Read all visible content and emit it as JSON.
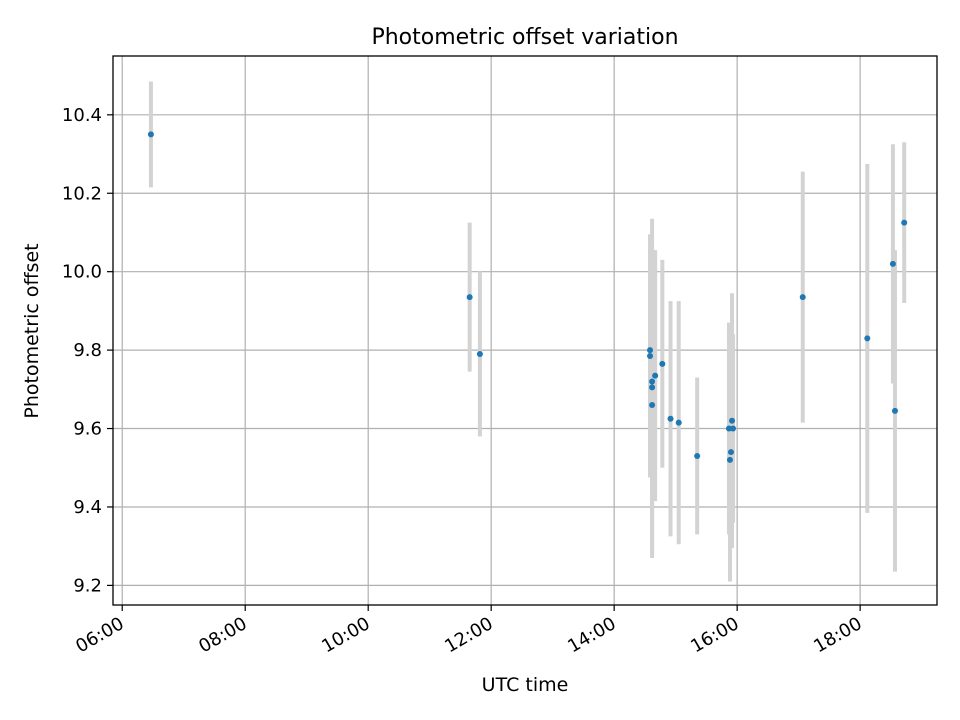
{
  "chart_data": {
    "type": "scatter",
    "title": "Photometric offset variation",
    "xlabel": "UTC time",
    "ylabel": "Photometric offset",
    "x_ticks": [
      "06:00",
      "08:00",
      "10:00",
      "12:00",
      "14:00",
      "16:00",
      "18:00"
    ],
    "y_ticks": [
      "9.2",
      "9.4",
      "9.6",
      "9.8",
      "10.0",
      "10.2",
      "10.4"
    ],
    "xlim": [
      "05:51",
      "19:15"
    ],
    "ylim": [
      9.15,
      10.55
    ],
    "grid": true,
    "legend": "none",
    "colors": {
      "marker": "#1f77b4",
      "errorbar": "#d3d3d3",
      "grid": "#b0b0b0"
    },
    "series": [
      {
        "points": [
          {
            "x": "06:28",
            "y": 10.35,
            "err": 0.135
          },
          {
            "x": "11:39",
            "y": 9.935,
            "err": 0.19
          },
          {
            "x": "11:49",
            "y": 9.79,
            "err": 0.21
          },
          {
            "x": "14:35",
            "y": 9.8,
            "err": 0.19
          },
          {
            "x": "14:35",
            "y": 9.785,
            "err": 0.31
          },
          {
            "x": "14:37",
            "y": 9.72,
            "err": 0.25
          },
          {
            "x": "14:37",
            "y": 9.705,
            "err": 0.43
          },
          {
            "x": "14:37",
            "y": 9.66,
            "err": 0.39
          },
          {
            "x": "14:40",
            "y": 9.735,
            "err": 0.32
          },
          {
            "x": "14:47",
            "y": 9.765,
            "err": 0.265
          },
          {
            "x": "14:55",
            "y": 9.625,
            "err": 0.3
          },
          {
            "x": "15:03",
            "y": 9.615,
            "err": 0.31
          },
          {
            "x": "15:21",
            "y": 9.53,
            "err": 0.2
          },
          {
            "x": "15:52",
            "y": 9.6,
            "err": 0.27
          },
          {
            "x": "15:53",
            "y": 9.52,
            "err": 0.31
          },
          {
            "x": "15:54",
            "y": 9.54,
            "err": 0.23
          },
          {
            "x": "15:55",
            "y": 9.62,
            "err": 0.325
          },
          {
            "x": "15:56",
            "y": 9.6,
            "err": 0.24
          },
          {
            "x": "17:04",
            "y": 9.935,
            "err": 0.32
          },
          {
            "x": "18:07",
            "y": 9.83,
            "err": 0.445
          },
          {
            "x": "18:32",
            "y": 10.02,
            "err": 0.305
          },
          {
            "x": "18:34",
            "y": 9.645,
            "err": 0.41
          },
          {
            "x": "18:43",
            "y": 10.125,
            "err": 0.205
          }
        ]
      }
    ]
  }
}
